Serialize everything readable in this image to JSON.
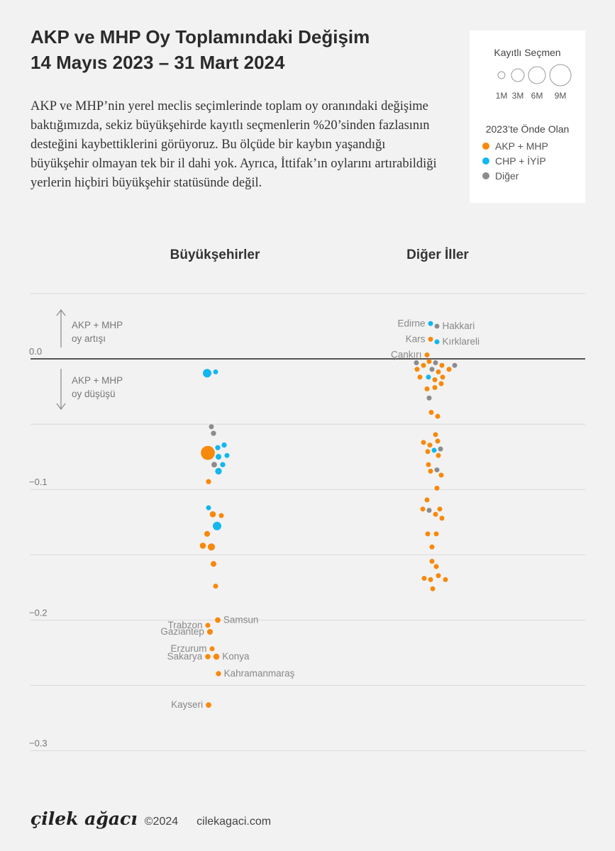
{
  "header": {
    "title_line1": "AKP ve MHP Oy Toplamındaki Değişim",
    "title_line2": "14 Mayıs 2023 – 31 Mart 2024",
    "description": "AKP ve MHP’nin yerel meclis seçimlerinde toplam oy oranındaki değişime baktığımızda, sekiz büyükşehirde kayıtlı seçmenlerin %20’sinden fazlasının desteğini kaybettiklerini görüyoruz. Bu ölçüde bir kaybın yaşandığı büyükşehir olmayan tek bir il dahi yok. Ayrıca, İttifak’ın oylarını artırabildiği yerlerin hiçbiri büyükşehir statüsünde değil."
  },
  "legend": {
    "size_title": "Kayıtlı Seçmen",
    "sizes": [
      {
        "label": "1M"
      },
      {
        "label": "3M"
      },
      {
        "label": "6M"
      },
      {
        "label": "9M"
      }
    ],
    "color_title": "2023’te Önde Olan",
    "items": [
      {
        "label": "AKP + MHP",
        "color": "#f7890c"
      },
      {
        "label": "CHP + İYİP",
        "color": "#12b7ef"
      },
      {
        "label": "Diğer",
        "color": "#8c8c8c"
      }
    ]
  },
  "panels": [
    {
      "title": "Büyükşehirler"
    },
    {
      "title": "Diğer İller"
    }
  ],
  "annotations": {
    "up": "AKP + MHP\noy artışı",
    "down": "AKP + MHP\noy düşüşü"
  },
  "chart_data": {
    "type": "scatter",
    "ylabel": "",
    "ylim": [
      -0.3,
      0.05
    ],
    "yticks": [
      {
        "value": 0.0,
        "label": "0.0"
      },
      {
        "value": -0.1,
        "label": "−0.1"
      },
      {
        "value": -0.2,
        "label": "−0.2"
      },
      {
        "value": -0.3,
        "label": "−0.3"
      }
    ],
    "colors": {
      "AKP + MHP": "#f7890c",
      "CHP + İYİP": "#12b7ef",
      "Diğer": "#8c8c8c"
    },
    "points": [
      {
        "group": "Büyükşehirler",
        "lead": "CHP + İYİP",
        "y": -0.011,
        "voters_m": 3.5,
        "label": ""
      },
      {
        "group": "Büyükşehirler",
        "lead": "CHP + İYİP",
        "y": -0.01,
        "voters_m": 1.2,
        "label": ""
      },
      {
        "group": "Büyükşehirler",
        "lead": "Diğer",
        "y": -0.052,
        "voters_m": 1.1,
        "label": ""
      },
      {
        "group": "Büyükşehirler",
        "lead": "Diğer",
        "y": -0.057,
        "voters_m": 1.3,
        "label": ""
      },
      {
        "group": "Büyükşehirler",
        "lead": "CHP + İYİP",
        "y": -0.068,
        "voters_m": 1.3,
        "label": ""
      },
      {
        "group": "Büyükşehirler",
        "lead": "CHP + İYİP",
        "y": -0.066,
        "voters_m": 1.3,
        "label": ""
      },
      {
        "group": "Büyükşehirler",
        "lead": "AKP + MHP",
        "y": -0.072,
        "voters_m": 9.5,
        "label": ""
      },
      {
        "group": "Büyükşehirler",
        "lead": "CHP + İYİP",
        "y": -0.075,
        "voters_m": 1.6,
        "label": ""
      },
      {
        "group": "Büyükşehirler",
        "lead": "CHP + İYİP",
        "y": -0.074,
        "voters_m": 1.0,
        "label": ""
      },
      {
        "group": "Büyükşehirler",
        "lead": "CHP + İYİP",
        "y": -0.081,
        "voters_m": 1.3,
        "label": ""
      },
      {
        "group": "Büyükşehirler",
        "lead": "Diğer",
        "y": -0.081,
        "voters_m": 1.5,
        "label": ""
      },
      {
        "group": "Büyükşehirler",
        "lead": "CHP + İYİP",
        "y": -0.086,
        "voters_m": 2.1,
        "label": ""
      },
      {
        "group": "Büyükşehirler",
        "lead": "AKP + MHP",
        "y": -0.094,
        "voters_m": 1.3,
        "label": ""
      },
      {
        "group": "Büyükşehirler",
        "lead": "CHP + İYİP",
        "y": -0.114,
        "voters_m": 1.2,
        "label": ""
      },
      {
        "group": "Büyükşehirler",
        "lead": "AKP + MHP",
        "y": -0.119,
        "voters_m": 1.8,
        "label": ""
      },
      {
        "group": "Büyükşehirler",
        "lead": "AKP + MHP",
        "y": -0.12,
        "voters_m": 1.1,
        "label": ""
      },
      {
        "group": "Büyükşehirler",
        "lead": "CHP + İYİP",
        "y": -0.128,
        "voters_m": 3.5,
        "label": ""
      },
      {
        "group": "Büyükşehirler",
        "lead": "AKP + MHP",
        "y": -0.134,
        "voters_m": 1.6,
        "label": ""
      },
      {
        "group": "Büyükşehirler",
        "lead": "AKP + MHP",
        "y": -0.143,
        "voters_m": 1.8,
        "label": ""
      },
      {
        "group": "Büyükşehirler",
        "lead": "AKP + MHP",
        "y": -0.144,
        "voters_m": 2.5,
        "label": ""
      },
      {
        "group": "Büyükşehirler",
        "lead": "AKP + MHP",
        "y": -0.157,
        "voters_m": 1.6,
        "label": ""
      },
      {
        "group": "Büyükşehirler",
        "lead": "AKP + MHP",
        "y": -0.174,
        "voters_m": 1.0,
        "label": ""
      },
      {
        "group": "Büyükşehirler",
        "lead": "AKP + MHP",
        "y": -0.2,
        "voters_m": 1.5,
        "label": "Samsun"
      },
      {
        "group": "Büyükşehirler",
        "lead": "AKP + MHP",
        "y": -0.204,
        "voters_m": 1.1,
        "label": "Trabzon"
      },
      {
        "group": "Büyükşehirler",
        "lead": "AKP + MHP",
        "y": -0.209,
        "voters_m": 1.6,
        "label": "Gaziantep"
      },
      {
        "group": "Büyükşehirler",
        "lead": "AKP + MHP",
        "y": -0.222,
        "voters_m": 1.0,
        "label": "Erzurum"
      },
      {
        "group": "Büyükşehirler",
        "lead": "AKP + MHP",
        "y": -0.228,
        "voters_m": 1.4,
        "label": "Sakarya"
      },
      {
        "group": "Büyükşehirler",
        "lead": "AKP + MHP",
        "y": -0.228,
        "voters_m": 1.8,
        "label": "Konya"
      },
      {
        "group": "Büyükşehirler",
        "lead": "AKP + MHP",
        "y": -0.241,
        "voters_m": 1.3,
        "label": "Kahramanmaraş"
      },
      {
        "group": "Büyükşehirler",
        "lead": "AKP + MHP",
        "y": -0.265,
        "voters_m": 1.5,
        "label": "Kayseri"
      },
      {
        "group": "Diğer İller",
        "lead": "CHP + İYİP",
        "y": 0.027,
        "voters_m": 0.4,
        "label": "Edirne"
      },
      {
        "group": "Diğer İller",
        "lead": "Diğer",
        "y": 0.025,
        "voters_m": 0.3,
        "label": "Hakkari"
      },
      {
        "group": "Diğer İller",
        "lead": "AKP + MHP",
        "y": 0.015,
        "voters_m": 0.25,
        "label": "Kars"
      },
      {
        "group": "Diğer İller",
        "lead": "CHP + İYİP",
        "y": 0.013,
        "voters_m": 0.4,
        "label": "Kırklareli"
      },
      {
        "group": "Diğer İller",
        "lead": "AKP + MHP",
        "y": 0.003,
        "voters_m": 0.15,
        "label": "Çankırı"
      },
      {
        "group": "Diğer İller",
        "lead": "AKP + MHP",
        "y": -0.002,
        "voters_m": 0.35,
        "label": ""
      },
      {
        "group": "Diğer İller",
        "lead": "Diğer",
        "y": -0.003,
        "voters_m": 0.2,
        "label": ""
      },
      {
        "group": "Diğer İller",
        "lead": "Diğer",
        "y": -0.003,
        "voters_m": 0.35,
        "label": ""
      },
      {
        "group": "Diğer İller",
        "lead": "Diğer",
        "y": -0.005,
        "voters_m": 0.15,
        "label": ""
      },
      {
        "group": "Diğer İller",
        "lead": "AKP + MHP",
        "y": -0.005,
        "voters_m": 0.3,
        "label": ""
      },
      {
        "group": "Diğer İller",
        "lead": "AKP + MHP",
        "y": -0.005,
        "voters_m": 0.3,
        "label": ""
      },
      {
        "group": "Diğer İller",
        "lead": "AKP + MHP",
        "y": -0.008,
        "voters_m": 0.25,
        "label": ""
      },
      {
        "group": "Diğer İller",
        "lead": "Diğer",
        "y": -0.008,
        "voters_m": 0.35,
        "label": ""
      },
      {
        "group": "Diğer İller",
        "lead": "AKP + MHP",
        "y": -0.008,
        "voters_m": 0.2,
        "label": ""
      },
      {
        "group": "Diğer İller",
        "lead": "AKP + MHP",
        "y": -0.01,
        "voters_m": 0.3,
        "label": ""
      },
      {
        "group": "Diğer İller",
        "lead": "AKP + MHP",
        "y": -0.014,
        "voters_m": 0.3,
        "label": ""
      },
      {
        "group": "Diğer İller",
        "lead": "CHP + İYİP",
        "y": -0.014,
        "voters_m": 0.4,
        "label": ""
      },
      {
        "group": "Diğer İller",
        "lead": "AKP + MHP",
        "y": -0.014,
        "voters_m": 0.3,
        "label": ""
      },
      {
        "group": "Diğer İller",
        "lead": "AKP + MHP",
        "y": -0.016,
        "voters_m": 0.35,
        "label": ""
      },
      {
        "group": "Diğer İller",
        "lead": "AKP + MHP",
        "y": -0.019,
        "voters_m": 0.3,
        "label": ""
      },
      {
        "group": "Diğer İller",
        "lead": "AKP + MHP",
        "y": -0.022,
        "voters_m": 0.3,
        "label": ""
      },
      {
        "group": "Diğer İller",
        "lead": "AKP + MHP",
        "y": -0.023,
        "voters_m": 0.35,
        "label": ""
      },
      {
        "group": "Diğer İller",
        "lead": "Diğer",
        "y": -0.03,
        "voters_m": 0.2,
        "label": ""
      },
      {
        "group": "Diğer İller",
        "lead": "AKP + MHP",
        "y": -0.041,
        "voters_m": 0.35,
        "label": ""
      },
      {
        "group": "Diğer İller",
        "lead": "AKP + MHP",
        "y": -0.044,
        "voters_m": 0.35,
        "label": ""
      },
      {
        "group": "Diğer İller",
        "lead": "AKP + MHP",
        "y": -0.058,
        "voters_m": 0.35,
        "label": ""
      },
      {
        "group": "Diğer İller",
        "lead": "AKP + MHP",
        "y": -0.063,
        "voters_m": 0.3,
        "label": ""
      },
      {
        "group": "Diğer İller",
        "lead": "AKP + MHP",
        "y": -0.064,
        "voters_m": 0.3,
        "label": ""
      },
      {
        "group": "Diğer İller",
        "lead": "AKP + MHP",
        "y": -0.066,
        "voters_m": 0.45,
        "label": ""
      },
      {
        "group": "Diğer İller",
        "lead": "CHP + İYİP",
        "y": -0.07,
        "voters_m": 0.35,
        "label": ""
      },
      {
        "group": "Diğer İller",
        "lead": "Diğer",
        "y": -0.069,
        "voters_m": 0.35,
        "label": ""
      },
      {
        "group": "Diğer İller",
        "lead": "AKP + MHP",
        "y": -0.071,
        "voters_m": 0.35,
        "label": ""
      },
      {
        "group": "Diğer İller",
        "lead": "AKP + MHP",
        "y": -0.074,
        "voters_m": 0.3,
        "label": ""
      },
      {
        "group": "Diğer İller",
        "lead": "AKP + MHP",
        "y": -0.081,
        "voters_m": 0.4,
        "label": ""
      },
      {
        "group": "Diğer İller",
        "lead": "AKP + MHP",
        "y": -0.086,
        "voters_m": 0.35,
        "label": ""
      },
      {
        "group": "Diğer İller",
        "lead": "Diğer",
        "y": -0.085,
        "voters_m": 0.3,
        "label": ""
      },
      {
        "group": "Diğer İller",
        "lead": "AKP + MHP",
        "y": -0.089,
        "voters_m": 0.3,
        "label": ""
      },
      {
        "group": "Diğer İller",
        "lead": "AKP + MHP",
        "y": -0.099,
        "voters_m": 0.4,
        "label": ""
      },
      {
        "group": "Diğer İller",
        "lead": "AKP + MHP",
        "y": -0.108,
        "voters_m": 0.3,
        "label": ""
      },
      {
        "group": "Diğer İller",
        "lead": "Diğer",
        "y": -0.116,
        "voters_m": 0.35,
        "label": ""
      },
      {
        "group": "Diğer İller",
        "lead": "AKP + MHP",
        "y": -0.115,
        "voters_m": 0.3,
        "label": ""
      },
      {
        "group": "Diğer İller",
        "lead": "AKP + MHP",
        "y": -0.115,
        "voters_m": 0.3,
        "label": ""
      },
      {
        "group": "Diğer İller",
        "lead": "AKP + MHP",
        "y": -0.119,
        "voters_m": 0.4,
        "label": ""
      },
      {
        "group": "Diğer İller",
        "lead": "AKP + MHP",
        "y": -0.122,
        "voters_m": 0.3,
        "label": ""
      },
      {
        "group": "Diğer İller",
        "lead": "AKP + MHP",
        "y": -0.134,
        "voters_m": 0.35,
        "label": ""
      },
      {
        "group": "Diğer İller",
        "lead": "AKP + MHP",
        "y": -0.134,
        "voters_m": 0.3,
        "label": ""
      },
      {
        "group": "Diğer İller",
        "lead": "AKP + MHP",
        "y": -0.144,
        "voters_m": 0.3,
        "label": ""
      },
      {
        "group": "Diğer İller",
        "lead": "AKP + MHP",
        "y": -0.155,
        "voters_m": 0.15,
        "label": ""
      },
      {
        "group": "Diğer İller",
        "lead": "AKP + MHP",
        "y": -0.159,
        "voters_m": 0.4,
        "label": ""
      },
      {
        "group": "Diğer İller",
        "lead": "AKP + MHP",
        "y": -0.166,
        "voters_m": 0.3,
        "label": ""
      },
      {
        "group": "Diğer İller",
        "lead": "AKP + MHP",
        "y": -0.168,
        "voters_m": 0.25,
        "label": ""
      },
      {
        "group": "Diğer İller",
        "lead": "AKP + MHP",
        "y": -0.169,
        "voters_m": 0.3,
        "label": ""
      },
      {
        "group": "Diğer İller",
        "lead": "AKP + MHP",
        "y": -0.176,
        "voters_m": 0.4,
        "label": ""
      },
      {
        "group": "Diğer İller",
        "lead": "AKP + MHP",
        "y": -0.169,
        "voters_m": 0.3,
        "label": ""
      }
    ]
  },
  "footer": {
    "brand": "çilek ağacı",
    "copyright": "©2024",
    "site": "cilekagaci.com"
  }
}
